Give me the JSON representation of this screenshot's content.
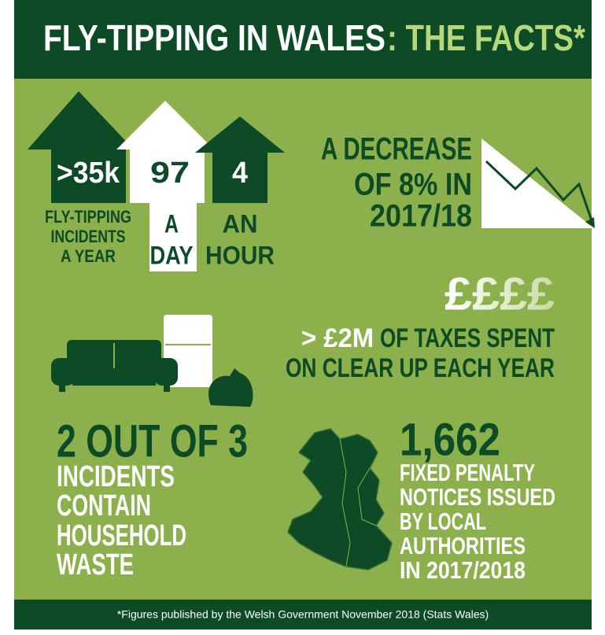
{
  "header": {
    "title": "FLY-TIPPING IN WALES",
    "title_accent": ": THE FACTS*"
  },
  "houses": [
    {
      "value": ">35k",
      "label_lines": [
        "FLY-TIPPING",
        "INCIDENTS",
        "A YEAR"
      ]
    },
    {
      "value": "97",
      "label_lines": [
        "A",
        "DAY"
      ]
    },
    {
      "value": "4",
      "label_lines": [
        "AN",
        "HOUR"
      ]
    }
  ],
  "decrease": {
    "lines": [
      "A DECREASE",
      "OF  8% IN",
      "2017/18"
    ]
  },
  "taxes": {
    "icon": "££££",
    "amount": "> £2M",
    "lines": [
      "OF TAXES SPENT",
      "ON CLEAR UP EACH YEAR"
    ]
  },
  "household": {
    "headline": "2 OUT OF 3",
    "lines": [
      "INCIDENTS",
      "CONTAIN",
      "HOUSEHOLD",
      "WASTE"
    ]
  },
  "penalties": {
    "headline": "1,662",
    "lines": [
      "FIXED PENALTY",
      "NOTICES ISSUED",
      "BY LOCAL",
      "AUTHORITIES",
      "IN 2017/2018"
    ]
  },
  "footer": "*Figures published by the Welsh Government November 2018 (Stats Wales)"
}
